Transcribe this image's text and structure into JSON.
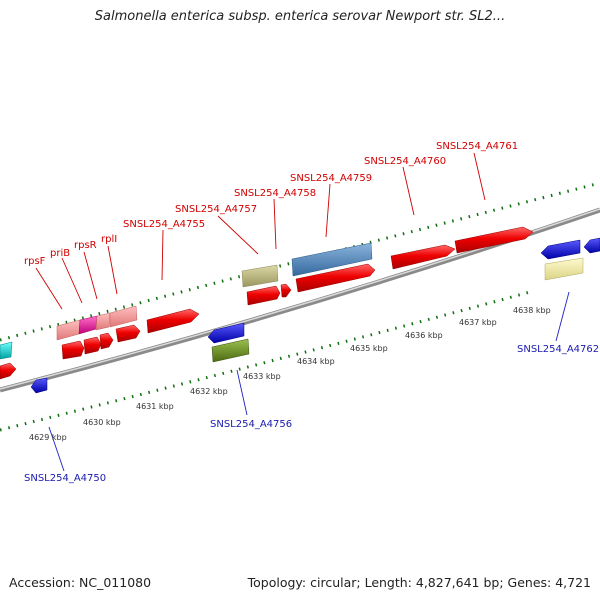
{
  "title": "Salmonella enterica subsp. enterica serovar Newport str. SL2...",
  "footer": {
    "accession": "Accession: NC_011080",
    "topology": "Topology: circular; Length: 4,827,641 bp; Genes: 4,721"
  },
  "colors": {
    "red": "#ee0000",
    "pink": "#f08888",
    "magenta": "#e8189a",
    "blue": "#0a0ad0",
    "steel_blue": "#4a7fb6",
    "khaki": "#b8b478",
    "olive": "#6a8a22",
    "light_yellow": "#eee8a0",
    "cyan": "#10c8c8",
    "tick_green": "#107010",
    "label_red": "#d00000",
    "label_blue": "#1a1ab0"
  },
  "kbp_labels": [
    "4629 kbp",
    "4630 kbp",
    "4631 kbp",
    "4632 kbp",
    "4633 kbp",
    "4634 kbp",
    "4635 kbp",
    "4636 kbp",
    "4637 kbp",
    "4638 kbp"
  ],
  "top_labels": [
    "rpsF",
    "priB",
    "rpsR",
    "rplI",
    "SNSL254_A4755",
    "SNSL254_A4757",
    "SNSL254_A4758",
    "SNSL254_A4759",
    "SNSL254_A4760",
    "SNSL254_A4761"
  ],
  "bottom_labels": [
    "SNSL254_A4750",
    "SNSL254_A4756",
    "SNSL254_A4762"
  ]
}
